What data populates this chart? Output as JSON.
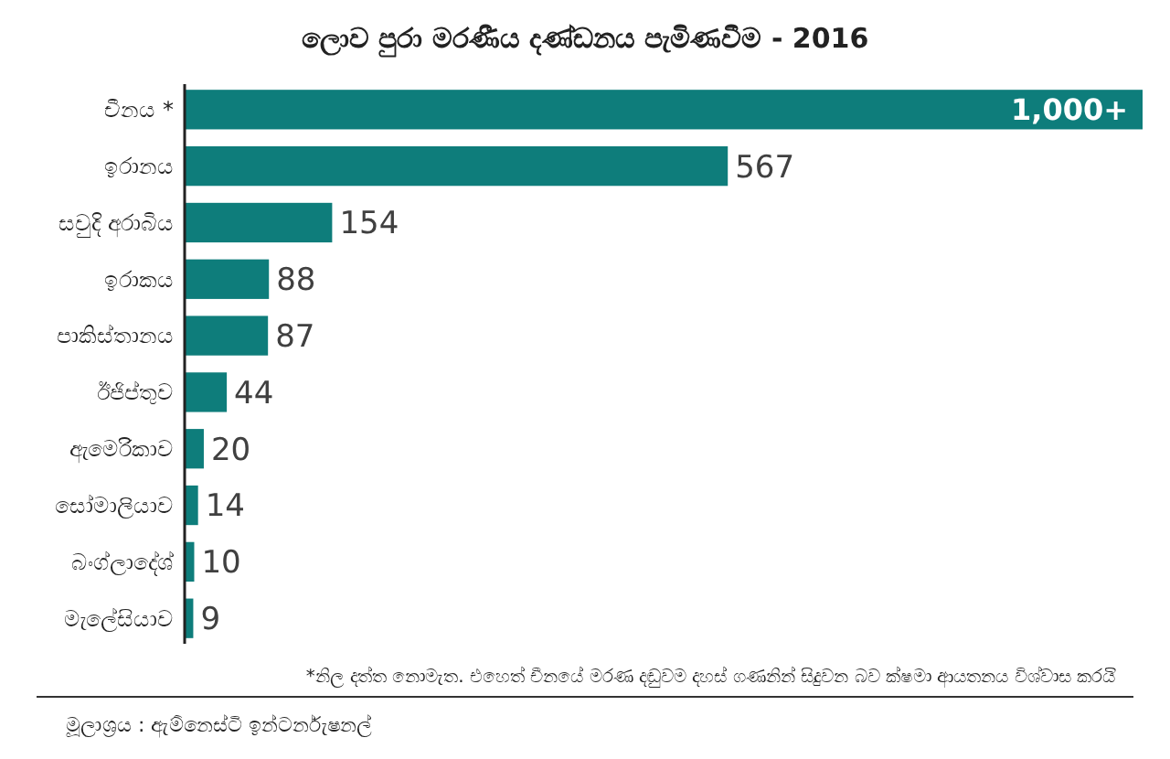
{
  "chart_data": {
    "type": "bar",
    "orientation": "horizontal",
    "title": "ලොව පුරා මරණීය දණ්ඩනය පැමිණවීම - 2016",
    "categories": [
      "චීනය *",
      "ඉරානය",
      "සවුදි අරාබිය",
      "ඉරාකය",
      "පාකිස්තානය",
      "ඊජිප්තුව",
      "ඇමෙරිකාව",
      "සෝමාලියාව",
      "බංග්ලාදේශ්",
      "මැලේසියාව"
    ],
    "values": [
      1000,
      567,
      154,
      88,
      87,
      44,
      20,
      14,
      10,
      9
    ],
    "value_labels": [
      "1,000+",
      "567",
      "154",
      "88",
      "87",
      "44",
      "20",
      "14",
      "10",
      "9"
    ],
    "color": "#0e7d7b",
    "annotations": [
      "*නිල දත්ත නොමැත. එහෙත් චීනයේ මරණ දඬුවම දහස් ගණනින් සිදුවන බව ක්ෂමා ආයතනය විශ්වාස කරයි",
      "මූලාශ්‍රය : ඇම්නෙස්ටි ඉන්ටර්නැෂනල්"
    ]
  }
}
